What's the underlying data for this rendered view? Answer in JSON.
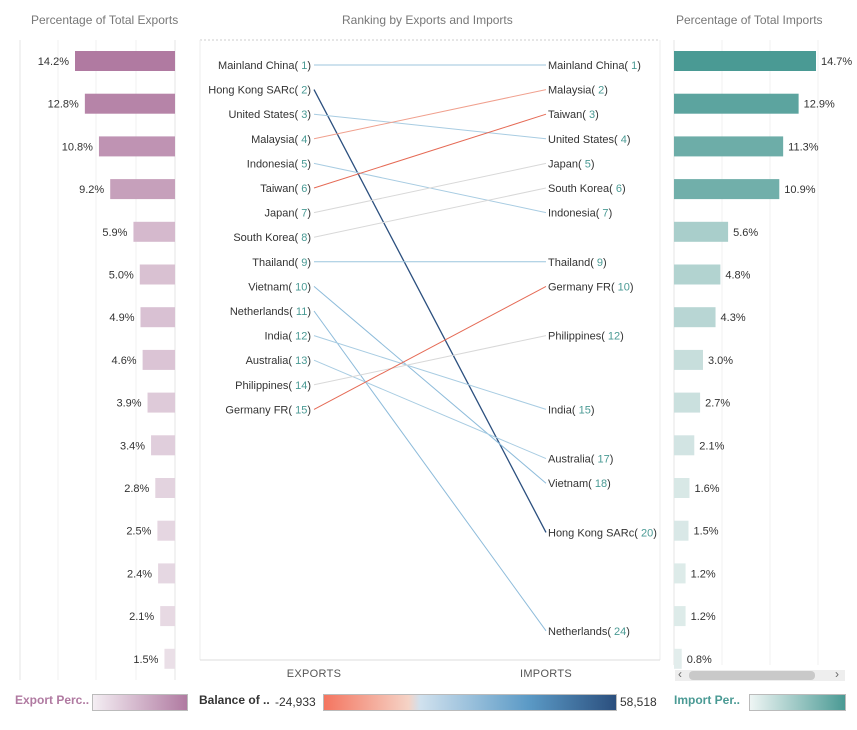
{
  "panels": {
    "left_title": "Percentage of Total Exports",
    "center_title": "Ranking by Exports and Imports",
    "right_title": "Percentage of Total Imports",
    "exports_axis": "EXPORTS",
    "imports_axis": "IMPORTS"
  },
  "legend": {
    "export_label": "Export Perc..",
    "balance_label": "Balance of ..",
    "balance_min": "-24,933",
    "balance_max": "58,518",
    "import_label": "Import Per..",
    "export_color": "#b07aa1",
    "import_color": "#4a9a94",
    "neg_color": "#f47560",
    "pos_color": "#2b4f7e"
  },
  "scrollbar": {
    "left_arrow": "‹",
    "right_arrow": "›"
  },
  "chart_data": [
    {
      "type": "bar",
      "title": "Percentage of Total Exports",
      "values": [
        14.2,
        12.8,
        10.8,
        9.2,
        5.9,
        5.0,
        4.9,
        4.6,
        3.9,
        3.4,
        2.8,
        2.5,
        2.4,
        2.1,
        1.5
      ],
      "labels": [
        "14.2%",
        "12.8%",
        "10.8%",
        "9.2%",
        "5.9%",
        "5.0%",
        "4.9%",
        "4.6%",
        "3.9%",
        "3.4%",
        "2.8%",
        "2.5%",
        "2.4%",
        "2.1%",
        "1.5%"
      ]
    },
    {
      "type": "line",
      "title": "Ranking by Exports and Imports",
      "xlabels": [
        "EXPORTS",
        "IMPORTS"
      ],
      "series": [
        {
          "name": "Mainland China",
          "export_rank": 1,
          "import_rank": 1
        },
        {
          "name": "Hong Kong SARc",
          "export_rank": 2,
          "import_rank": 20
        },
        {
          "name": "United States",
          "export_rank": 3,
          "import_rank": 4
        },
        {
          "name": "Malaysia",
          "export_rank": 4,
          "import_rank": 2
        },
        {
          "name": "Indonesia",
          "export_rank": 5,
          "import_rank": 7
        },
        {
          "name": "Taiwan",
          "export_rank": 6,
          "import_rank": 3
        },
        {
          "name": "Japan",
          "export_rank": 7,
          "import_rank": 5
        },
        {
          "name": "South Korea",
          "export_rank": 8,
          "import_rank": 6
        },
        {
          "name": "Thailand",
          "export_rank": 9,
          "import_rank": 9
        },
        {
          "name": "Vietnam",
          "export_rank": 10,
          "import_rank": 18
        },
        {
          "name": "Netherlands",
          "export_rank": 11,
          "import_rank": 24
        },
        {
          "name": "India",
          "export_rank": 12,
          "import_rank": 15
        },
        {
          "name": "Australia",
          "export_rank": 13,
          "import_rank": 17
        },
        {
          "name": "Philippines",
          "export_rank": 14,
          "import_rank": 12
        },
        {
          "name": "Germany FR",
          "export_rank": 15,
          "import_rank": 10
        }
      ]
    },
    {
      "type": "bar",
      "title": "Percentage of Total Imports",
      "values": [
        14.7,
        12.9,
        11.3,
        10.9,
        5.6,
        4.8,
        4.3,
        3.0,
        2.7,
        2.1,
        1.6,
        1.5,
        1.2,
        1.2,
        0.8
      ],
      "labels": [
        "14.7%",
        "12.9%",
        "11.3%",
        "10.9%",
        "5.6%",
        "4.8%",
        "4.3%",
        "3.0%",
        "2.7%",
        "2.1%",
        "1.6%",
        "1.5%",
        "1.2%",
        "1.2%",
        "0.8%"
      ]
    }
  ]
}
